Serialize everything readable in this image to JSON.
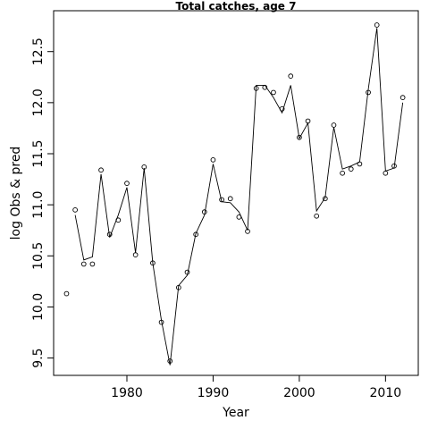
{
  "chart_data": {
    "type": "scatter",
    "title": "Total catches, age 7",
    "xlabel": "Year",
    "ylabel": "log Obs & pred",
    "xlim": [
      1971.5,
      2013.8
    ],
    "ylim": [
      9.33,
      12.9
    ],
    "x_ticks": [
      1980,
      1990,
      2000,
      2010
    ],
    "y_ticks": [
      9.5,
      10.0,
      10.5,
      11.0,
      11.5,
      12.0,
      12.5
    ],
    "x_tick_labels": [
      "1980",
      "1990",
      "2000",
      "2010"
    ],
    "y_tick_labels": [
      "9.5",
      "10.0",
      "10.5",
      "11.0",
      "11.5",
      "12.0",
      "12.5"
    ],
    "grid": false,
    "legend": "none",
    "series": [
      {
        "style": "points",
        "marker": "open-circle",
        "x": [
          1973,
          1974,
          1975,
          1976,
          1977,
          1978,
          1979,
          1980,
          1981,
          1982,
          1983,
          1984,
          1985,
          1986,
          1987,
          1988,
          1989,
          1990,
          1991,
          1992,
          1993,
          1994,
          1995,
          1996,
          1997,
          1998,
          1999,
          2000,
          2001,
          2002,
          2003,
          2004,
          2005,
          2006,
          2007,
          2008,
          2009,
          2010,
          2011,
          2012
        ],
        "y": [
          10.13,
          10.95,
          10.42,
          10.42,
          11.34,
          10.71,
          10.85,
          11.21,
          10.51,
          11.37,
          10.43,
          9.85,
          9.47,
          10.19,
          10.34,
          10.71,
          10.93,
          11.44,
          11.05,
          11.06,
          10.88,
          10.74,
          12.14,
          12.15,
          12.1,
          11.94,
          12.26,
          11.66,
          11.82,
          10.89,
          11.06,
          11.78,
          11.31,
          11.35,
          11.4,
          12.1,
          12.76,
          11.31,
          11.38,
          12.05
        ]
      },
      {
        "style": "line",
        "x": [
          1974,
          1975,
          1976,
          1977,
          1978,
          1979,
          1980,
          1981,
          1982,
          1983,
          1984,
          1985,
          1986,
          1987,
          1988,
          1989,
          1990,
          1991,
          1992,
          1993,
          1994,
          1995,
          1996,
          1997,
          1998,
          1999,
          2000,
          2001,
          2002,
          2003,
          2004,
          2005,
          2006,
          2007,
          2008,
          2009,
          2010,
          2011,
          2012
        ],
        "y": [
          10.9,
          10.46,
          10.49,
          11.3,
          10.68,
          10.9,
          11.17,
          10.53,
          11.36,
          10.43,
          9.87,
          9.43,
          10.21,
          10.31,
          10.72,
          10.9,
          11.4,
          11.03,
          11.02,
          10.93,
          10.75,
          12.17,
          12.17,
          12.05,
          11.9,
          12.17,
          11.65,
          11.8,
          10.94,
          11.07,
          11.76,
          11.35,
          11.38,
          11.42,
          12.13,
          12.73,
          11.33,
          11.36,
          12.0
        ]
      }
    ]
  }
}
